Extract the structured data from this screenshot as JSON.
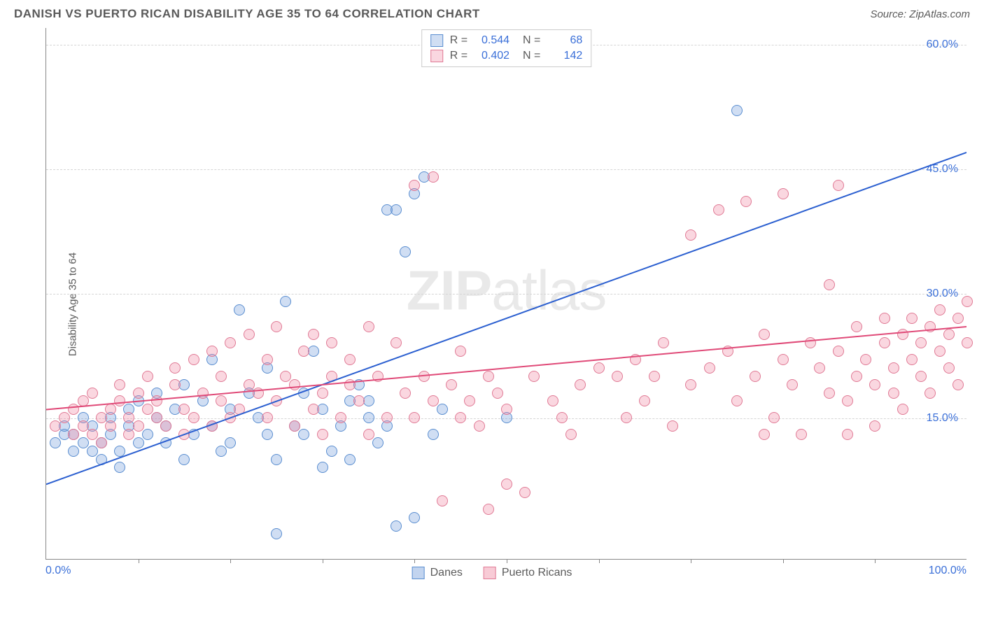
{
  "header": {
    "title": "DANISH VS PUERTO RICAN DISABILITY AGE 35 TO 64 CORRELATION CHART",
    "source": "Source: ZipAtlas.com"
  },
  "watermark": {
    "bold": "ZIP",
    "light": "atlas"
  },
  "chart": {
    "type": "scatter",
    "ylabel": "Disability Age 35 to 64",
    "background_color": "#ffffff",
    "grid_color": "#d5d5d5",
    "axis_color": "#888888",
    "label_color": "#5a5a5a",
    "tick_label_color": "#3a6fd8",
    "xlim": [
      0,
      100
    ],
    "ylim": [
      -2,
      62
    ],
    "xtick_labels": [
      {
        "pos": 0,
        "label": "0.0%"
      },
      {
        "pos": 100,
        "label": "100.0%"
      }
    ],
    "xtick_marks": [
      10,
      20,
      30,
      40,
      50,
      60,
      70,
      80,
      90
    ],
    "ytick_labels": [
      {
        "pos": 15,
        "label": "15.0%"
      },
      {
        "pos": 30,
        "label": "30.0%"
      },
      {
        "pos": 45,
        "label": "45.0%"
      },
      {
        "pos": 60,
        "label": "60.0%"
      }
    ],
    "gridlines_y": [
      15,
      30,
      45,
      60
    ],
    "point_radius": 8,
    "series": [
      {
        "name": "Danes",
        "fill": "rgba(120,160,220,0.35)",
        "stroke": "#5a8ed0",
        "trend": {
          "x1": 0,
          "y1": 7,
          "x2": 100,
          "y2": 47,
          "color": "#2b5fd0",
          "width": 2
        },
        "R": "0.544",
        "N": "68",
        "points": [
          [
            1,
            12
          ],
          [
            2,
            13
          ],
          [
            2,
            14
          ],
          [
            3,
            11
          ],
          [
            3,
            13
          ],
          [
            4,
            12
          ],
          [
            4,
            15
          ],
          [
            5,
            11
          ],
          [
            5,
            14
          ],
          [
            6,
            12
          ],
          [
            6,
            10
          ],
          [
            7,
            13
          ],
          [
            7,
            15
          ],
          [
            8,
            11
          ],
          [
            8,
            9
          ],
          [
            9,
            14
          ],
          [
            9,
            16
          ],
          [
            10,
            12
          ],
          [
            10,
            17
          ],
          [
            11,
            13
          ],
          [
            12,
            15
          ],
          [
            12,
            18
          ],
          [
            13,
            12
          ],
          [
            13,
            14
          ],
          [
            14,
            16
          ],
          [
            15,
            10
          ],
          [
            15,
            19
          ],
          [
            16,
            13
          ],
          [
            17,
            17
          ],
          [
            18,
            14
          ],
          [
            18,
            22
          ],
          [
            19,
            11
          ],
          [
            20,
            16
          ],
          [
            20,
            12
          ],
          [
            21,
            28
          ],
          [
            22,
            18
          ],
          [
            23,
            15
          ],
          [
            24,
            13
          ],
          [
            24,
            21
          ],
          [
            25,
            10
          ],
          [
            26,
            29
          ],
          [
            27,
            14
          ],
          [
            28,
            13
          ],
          [
            28,
            18
          ],
          [
            29,
            23
          ],
          [
            30,
            16
          ],
          [
            31,
            11
          ],
          [
            32,
            14
          ],
          [
            33,
            17
          ],
          [
            34,
            19
          ],
          [
            35,
            15
          ],
          [
            36,
            12
          ],
          [
            37,
            14
          ],
          [
            37,
            40
          ],
          [
            38,
            40
          ],
          [
            39,
            35
          ],
          [
            40,
            42
          ],
          [
            41,
            44
          ],
          [
            42,
            13
          ],
          [
            43,
            16
          ],
          [
            25,
            1
          ],
          [
            38,
            2
          ],
          [
            40,
            3
          ],
          [
            30,
            9
          ],
          [
            33,
            10
          ],
          [
            50,
            15
          ],
          [
            75,
            52
          ],
          [
            35,
            17
          ]
        ]
      },
      {
        "name": "Puerto Ricans",
        "fill": "rgba(240,140,165,0.35)",
        "stroke": "#e07a95",
        "trend": {
          "x1": 0,
          "y1": 16,
          "x2": 100,
          "y2": 26,
          "color": "#e04a78",
          "width": 2
        },
        "R": "0.402",
        "N": "142",
        "points": [
          [
            1,
            14
          ],
          [
            2,
            15
          ],
          [
            3,
            13
          ],
          [
            3,
            16
          ],
          [
            4,
            14
          ],
          [
            4,
            17
          ],
          [
            5,
            13
          ],
          [
            5,
            18
          ],
          [
            6,
            15
          ],
          [
            6,
            12
          ],
          [
            7,
            14
          ],
          [
            7,
            16
          ],
          [
            8,
            17
          ],
          [
            8,
            19
          ],
          [
            9,
            13
          ],
          [
            9,
            15
          ],
          [
            10,
            14
          ],
          [
            10,
            18
          ],
          [
            11,
            16
          ],
          [
            11,
            20
          ],
          [
            12,
            15
          ],
          [
            12,
            17
          ],
          [
            13,
            14
          ],
          [
            14,
            19
          ],
          [
            14,
            21
          ],
          [
            15,
            16
          ],
          [
            15,
            13
          ],
          [
            16,
            15
          ],
          [
            16,
            22
          ],
          [
            17,
            18
          ],
          [
            18,
            14
          ],
          [
            18,
            23
          ],
          [
            19,
            17
          ],
          [
            19,
            20
          ],
          [
            20,
            15
          ],
          [
            20,
            24
          ],
          [
            21,
            16
          ],
          [
            22,
            19
          ],
          [
            22,
            25
          ],
          [
            23,
            18
          ],
          [
            24,
            15
          ],
          [
            24,
            22
          ],
          [
            25,
            17
          ],
          [
            25,
            26
          ],
          [
            26,
            20
          ],
          [
            27,
            14
          ],
          [
            27,
            19
          ],
          [
            28,
            23
          ],
          [
            29,
            16
          ],
          [
            29,
            25
          ],
          [
            30,
            18
          ],
          [
            30,
            13
          ],
          [
            31,
            20
          ],
          [
            31,
            24
          ],
          [
            32,
            15
          ],
          [
            33,
            19
          ],
          [
            33,
            22
          ],
          [
            34,
            17
          ],
          [
            35,
            26
          ],
          [
            35,
            13
          ],
          [
            36,
            20
          ],
          [
            37,
            15
          ],
          [
            38,
            24
          ],
          [
            39,
            18
          ],
          [
            40,
            15
          ],
          [
            40,
            43
          ],
          [
            41,
            20
          ],
          [
            42,
            17
          ],
          [
            42,
            44
          ],
          [
            43,
            5
          ],
          [
            44,
            19
          ],
          [
            45,
            15
          ],
          [
            45,
            23
          ],
          [
            46,
            17
          ],
          [
            47,
            14
          ],
          [
            48,
            20
          ],
          [
            48,
            4
          ],
          [
            49,
            18
          ],
          [
            50,
            16
          ],
          [
            50,
            7
          ],
          [
            52,
            6
          ],
          [
            53,
            20
          ],
          [
            55,
            17
          ],
          [
            56,
            15
          ],
          [
            57,
            13
          ],
          [
            58,
            19
          ],
          [
            60,
            21
          ],
          [
            62,
            20
          ],
          [
            63,
            15
          ],
          [
            64,
            22
          ],
          [
            65,
            17
          ],
          [
            66,
            20
          ],
          [
            67,
            24
          ],
          [
            68,
            14
          ],
          [
            70,
            19
          ],
          [
            70,
            37
          ],
          [
            72,
            21
          ],
          [
            73,
            40
          ],
          [
            74,
            23
          ],
          [
            75,
            17
          ],
          [
            76,
            41
          ],
          [
            77,
            20
          ],
          [
            78,
            25
          ],
          [
            79,
            15
          ],
          [
            80,
            22
          ],
          [
            80,
            42
          ],
          [
            81,
            19
          ],
          [
            82,
            13
          ],
          [
            83,
            24
          ],
          [
            84,
            21
          ],
          [
            85,
            18
          ],
          [
            85,
            31
          ],
          [
            86,
            23
          ],
          [
            86,
            43
          ],
          [
            87,
            17
          ],
          [
            88,
            20
          ],
          [
            88,
            26
          ],
          [
            89,
            22
          ],
          [
            90,
            19
          ],
          [
            90,
            14
          ],
          [
            91,
            24
          ],
          [
            91,
            27
          ],
          [
            92,
            18
          ],
          [
            92,
            21
          ],
          [
            93,
            25
          ],
          [
            93,
            16
          ],
          [
            94,
            22
          ],
          [
            94,
            27
          ],
          [
            95,
            20
          ],
          [
            95,
            24
          ],
          [
            96,
            26
          ],
          [
            96,
            18
          ],
          [
            97,
            23
          ],
          [
            97,
            28
          ],
          [
            98,
            21
          ],
          [
            98,
            25
          ],
          [
            99,
            27
          ],
          [
            99,
            19
          ],
          [
            100,
            24
          ],
          [
            100,
            29
          ],
          [
            87,
            13
          ],
          [
            78,
            13
          ]
        ]
      }
    ]
  },
  "legend_bottom": [
    {
      "label": "Danes",
      "fill": "rgba(120,160,220,0.45)",
      "stroke": "#5a8ed0"
    },
    {
      "label": "Puerto Ricans",
      "fill": "rgba(240,140,165,0.45)",
      "stroke": "#e07a95"
    }
  ]
}
